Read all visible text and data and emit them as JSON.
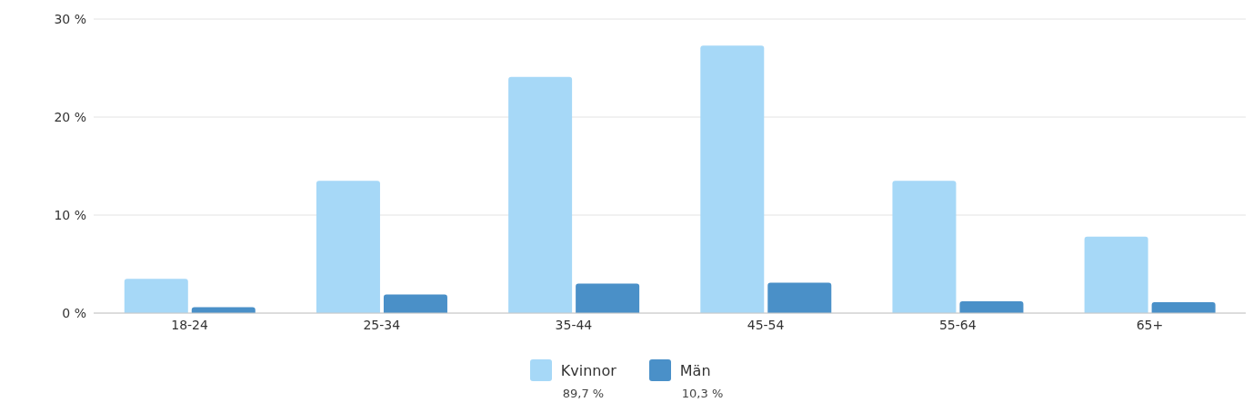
{
  "chart_data": {
    "type": "bar",
    "categories": [
      "18-24",
      "25-34",
      "35-44",
      "45-54",
      "55-64",
      "65+"
    ],
    "series": [
      {
        "name": "Kvinnor",
        "color": "#a6d8f7",
        "values": [
          3.5,
          13.5,
          24.1,
          27.3,
          13.5,
          7.8
        ]
      },
      {
        "name": "Män",
        "color": "#4a90c8",
        "values": [
          0.6,
          1.9,
          3.0,
          3.1,
          1.2,
          1.1
        ]
      }
    ],
    "ylim": [
      0,
      30
    ],
    "yticks": [
      {
        "value": 0,
        "label": "0 %"
      },
      {
        "value": 10,
        "label": "10 %"
      },
      {
        "value": 20,
        "label": "20 %"
      },
      {
        "value": 30,
        "label": "30 %"
      }
    ],
    "grid": "y",
    "legend": "bottom",
    "annotations": [
      "89,7 %",
      "10,3 %"
    ]
  }
}
